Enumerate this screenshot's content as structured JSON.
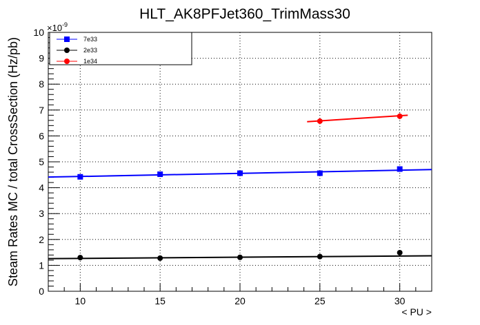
{
  "chart_data": {
    "type": "scatter",
    "title": "HLT_AK8PFJet360_TrimMass30",
    "xlabel": "< PU >",
    "ylabel": "Steam Rates MC / total CrossSection (Hz/pb)",
    "y_exponent_label": "×10",
    "y_exponent_power": "-9",
    "xlim": [
      8,
      32
    ],
    "ylim": [
      0,
      10
    ],
    "x_ticks": [
      10,
      15,
      20,
      25,
      30
    ],
    "x_tick_labels": [
      "10",
      "15",
      "20",
      "25",
      "30"
    ],
    "y_ticks": [
      0,
      1,
      2,
      3,
      4,
      5,
      6,
      7,
      8,
      9,
      10
    ],
    "y_tick_labels": [
      "0",
      "1",
      "2",
      "3",
      "4",
      "5",
      "6",
      "7",
      "8",
      "9",
      "10"
    ],
    "grid": true,
    "legend_position": "top-left",
    "series": [
      {
        "name": "7e33",
        "color": "#0000ff",
        "marker": "square",
        "x": [
          10,
          15,
          20,
          25,
          30
        ],
        "y": [
          4.42,
          4.52,
          4.56,
          4.56,
          4.72
        ],
        "fit": {
          "x": [
            8,
            32
          ],
          "y": [
            4.41,
            4.7
          ]
        }
      },
      {
        "name": "2e33",
        "color": "#000000",
        "marker": "circle",
        "x": [
          10,
          15,
          20,
          25,
          30
        ],
        "y": [
          1.3,
          1.28,
          1.31,
          1.34,
          1.49
        ],
        "fit": {
          "x": [
            8,
            32
          ],
          "y": [
            1.26,
            1.37
          ]
        }
      },
      {
        "name": "1e34",
        "color": "#ff0000",
        "marker": "circle",
        "x": [
          25,
          30
        ],
        "y": [
          6.57,
          6.76
        ],
        "y_err": [
          0.12,
          0.12
        ],
        "fit": {
          "x": [
            24.2,
            30.5
          ],
          "y": [
            6.55,
            6.8
          ]
        }
      }
    ]
  }
}
